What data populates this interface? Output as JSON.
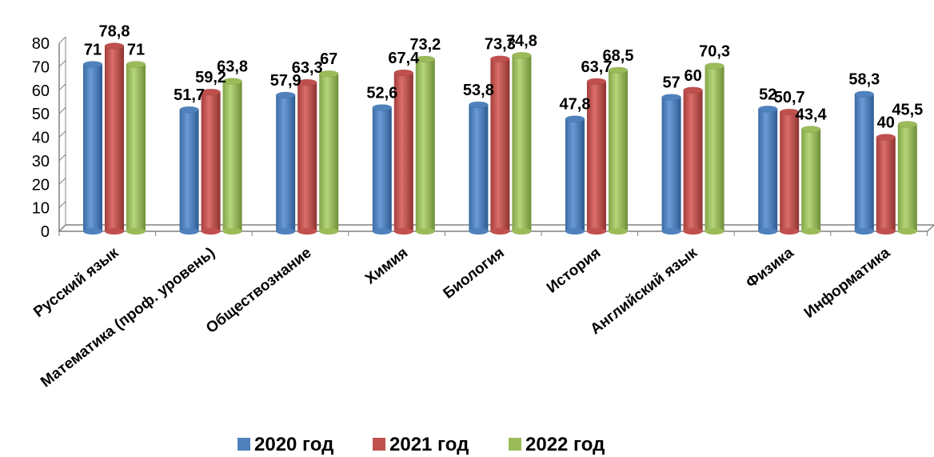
{
  "chart_data": {
    "type": "bar",
    "title": "",
    "xlabel": "",
    "ylabel": "",
    "ylim": [
      0,
      80
    ],
    "yticks": [
      0,
      10,
      20,
      30,
      40,
      50,
      60,
      70,
      80
    ],
    "grid": false,
    "legend_position": "bottom",
    "categories": [
      "Русский язык",
      "Математика (проф. уровень)",
      "Обществознание",
      "Химия",
      "Биология",
      "История",
      "Английский язык",
      "Физика",
      "Информатика"
    ],
    "series": [
      {
        "name": "2020 год",
        "color": "#4F81BD",
        "values": [
          71,
          51.7,
          57.9,
          52.6,
          53.8,
          47.8,
          57,
          52,
          58.3
        ],
        "labels": [
          "71",
          "51,7",
          "57,9",
          "52,6",
          "53,8",
          "47,8",
          "57",
          "52",
          "58,3"
        ]
      },
      {
        "name": "2021 год",
        "color": "#C0504D",
        "values": [
          78.8,
          59.2,
          63.3,
          67.4,
          73.3,
          63.7,
          60,
          50.7,
          40
        ],
        "labels": [
          "78,8",
          "59,2",
          "63,3",
          "67,4",
          "73,3",
          "63,7",
          "60",
          "50,7",
          "40"
        ]
      },
      {
        "name": "2022 год",
        "color": "#9BBB59",
        "values": [
          71,
          63.8,
          67,
          73.2,
          74.8,
          68.5,
          70.3,
          43.4,
          45.5
        ],
        "labels": [
          "71",
          "63,8",
          "67",
          "73,2",
          "74,8",
          "68,5",
          "70,3",
          "43,4",
          "45,5"
        ]
      }
    ]
  }
}
